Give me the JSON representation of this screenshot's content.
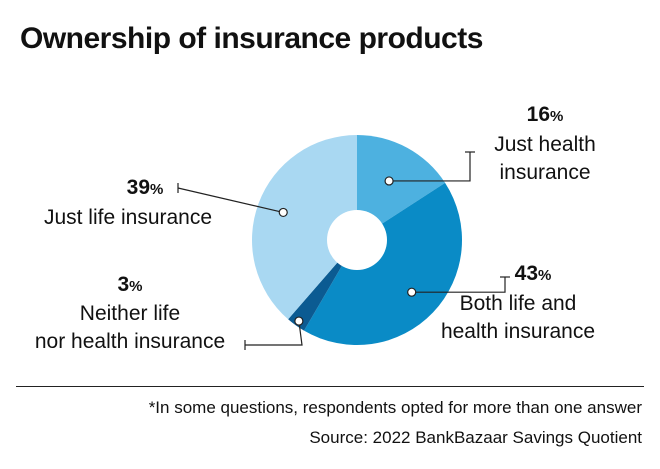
{
  "chart_data": {
    "type": "pie",
    "title": "Ownership of insurance products",
    "donut": true,
    "slices": [
      {
        "label": "Just health insurance",
        "lines": [
          "Just health",
          "insurance"
        ],
        "value": 16,
        "color": "#4DB1E0"
      },
      {
        "label": "Both life and health insurance",
        "lines": [
          "Both life and",
          "health insurance"
        ],
        "value": 43,
        "color": "#0A8BC6"
      },
      {
        "label": "Neither life nor health insurance",
        "lines": [
          "Neither life",
          "nor health insurance"
        ],
        "value": 3,
        "color": "#0B5B92"
      },
      {
        "label": "Just life insurance",
        "lines": [
          "Just life insurance"
        ],
        "value": 39,
        "color": "#A9D8F2"
      }
    ],
    "unit": "%",
    "note": "*In some questions, respondents opted for more than one answer",
    "source": "Source: 2022 BankBazaar Savings Quotient"
  }
}
